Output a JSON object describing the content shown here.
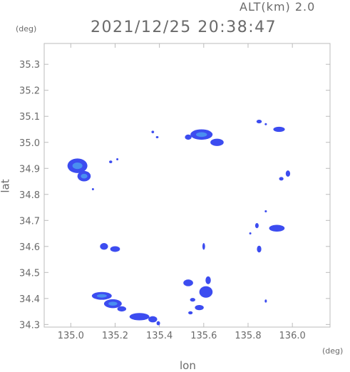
{
  "header": {
    "altitude_label": "ALT(km)  2.0",
    "timestamp": "2021/12/25 20:38:47"
  },
  "axes": {
    "x_unit": "(deg)",
    "y_unit": "(deg)",
    "xlabel": "lon",
    "ylabel": "lat"
  },
  "chart_data": {
    "type": "scatter",
    "title": "2021/12/25 20:38:47",
    "subtitle": "ALT(km)  2.0",
    "xlabel": "lon",
    "ylabel": "lat",
    "xlim": [
      134.88,
      136.17
    ],
    "ylim": [
      34.29,
      35.38
    ],
    "x_ticks": [
      135.0,
      135.2,
      135.4,
      135.6,
      135.8,
      136.0
    ],
    "x_tick_labels": [
      "135.0",
      "135.2",
      "135.4",
      "135.6",
      "135.8",
      "136.0"
    ],
    "y_ticks": [
      34.3,
      34.4,
      34.5,
      34.6,
      34.7,
      34.8,
      34.9,
      35.0,
      35.1,
      35.2,
      35.3
    ],
    "y_tick_labels": [
      "34.3",
      "34.4",
      "34.5",
      "34.6",
      "34.7",
      "34.8",
      "34.9",
      "35.0",
      "35.1",
      "35.2",
      "35.3"
    ],
    "grid": false,
    "colors": {
      "primary": "#3c4cf0",
      "core": "#4a8ff0",
      "axis": "#bbbbbb",
      "text": "#6a6a6a"
    },
    "echo_regions": [
      {
        "lon": 135.03,
        "lat": 34.91,
        "r_lon": 0.045,
        "r_lat": 0.028,
        "core": true
      },
      {
        "lon": 135.06,
        "lat": 34.87,
        "r_lon": 0.03,
        "r_lat": 0.02,
        "core": true
      },
      {
        "lon": 135.1,
        "lat": 34.82,
        "r_lon": 0.004,
        "r_lat": 0.004,
        "core": false
      },
      {
        "lon": 135.18,
        "lat": 34.925,
        "r_lon": 0.007,
        "r_lat": 0.005,
        "core": false
      },
      {
        "lon": 135.21,
        "lat": 34.935,
        "r_lon": 0.004,
        "r_lat": 0.004,
        "core": false
      },
      {
        "lon": 135.37,
        "lat": 35.04,
        "r_lon": 0.006,
        "r_lat": 0.005,
        "core": false
      },
      {
        "lon": 135.39,
        "lat": 35.02,
        "r_lon": 0.006,
        "r_lat": 0.004,
        "core": false
      },
      {
        "lon": 135.59,
        "lat": 35.03,
        "r_lon": 0.05,
        "r_lat": 0.02,
        "core": true
      },
      {
        "lon": 135.66,
        "lat": 35.0,
        "r_lon": 0.03,
        "r_lat": 0.014,
        "core": false
      },
      {
        "lon": 135.53,
        "lat": 35.02,
        "r_lon": 0.015,
        "r_lat": 0.01,
        "core": false
      },
      {
        "lon": 135.85,
        "lat": 35.08,
        "r_lon": 0.012,
        "r_lat": 0.007,
        "core": false
      },
      {
        "lon": 135.94,
        "lat": 35.05,
        "r_lon": 0.026,
        "r_lat": 0.01,
        "core": false
      },
      {
        "lon": 135.88,
        "lat": 35.07,
        "r_lon": 0.005,
        "r_lat": 0.004,
        "core": false
      },
      {
        "lon": 135.95,
        "lat": 34.86,
        "r_lon": 0.01,
        "r_lat": 0.007,
        "core": false
      },
      {
        "lon": 135.98,
        "lat": 34.88,
        "r_lon": 0.01,
        "r_lat": 0.012,
        "core": false
      },
      {
        "lon": 135.88,
        "lat": 34.735,
        "r_lon": 0.005,
        "r_lat": 0.004,
        "core": false
      },
      {
        "lon": 135.93,
        "lat": 34.67,
        "r_lon": 0.035,
        "r_lat": 0.013,
        "core": false
      },
      {
        "lon": 135.84,
        "lat": 34.68,
        "r_lon": 0.008,
        "r_lat": 0.01,
        "core": false
      },
      {
        "lon": 135.85,
        "lat": 34.59,
        "r_lon": 0.01,
        "r_lat": 0.013,
        "core": false
      },
      {
        "lon": 135.81,
        "lat": 34.65,
        "r_lon": 0.004,
        "r_lat": 0.004,
        "core": false
      },
      {
        "lon": 135.88,
        "lat": 34.39,
        "r_lon": 0.004,
        "r_lat": 0.006,
        "core": false
      },
      {
        "lon": 135.15,
        "lat": 34.6,
        "r_lon": 0.018,
        "r_lat": 0.013,
        "core": false
      },
      {
        "lon": 135.2,
        "lat": 34.59,
        "r_lon": 0.022,
        "r_lat": 0.011,
        "core": false
      },
      {
        "lon": 135.6,
        "lat": 34.6,
        "r_lon": 0.006,
        "r_lat": 0.013,
        "core": false
      },
      {
        "lon": 135.62,
        "lat": 34.47,
        "r_lon": 0.012,
        "r_lat": 0.015,
        "core": false
      },
      {
        "lon": 135.53,
        "lat": 34.46,
        "r_lon": 0.022,
        "r_lat": 0.013,
        "core": false
      },
      {
        "lon": 135.61,
        "lat": 34.425,
        "r_lon": 0.03,
        "r_lat": 0.022,
        "core": false
      },
      {
        "lon": 135.55,
        "lat": 34.395,
        "r_lon": 0.012,
        "r_lat": 0.007,
        "core": false
      },
      {
        "lon": 135.58,
        "lat": 34.365,
        "r_lon": 0.02,
        "r_lat": 0.01,
        "core": false
      },
      {
        "lon": 135.54,
        "lat": 34.345,
        "r_lon": 0.01,
        "r_lat": 0.006,
        "core": false
      },
      {
        "lon": 135.14,
        "lat": 34.41,
        "r_lon": 0.045,
        "r_lat": 0.015,
        "core": true
      },
      {
        "lon": 135.19,
        "lat": 34.38,
        "r_lon": 0.04,
        "r_lat": 0.017,
        "core": true
      },
      {
        "lon": 135.23,
        "lat": 34.36,
        "r_lon": 0.02,
        "r_lat": 0.01,
        "core": false
      },
      {
        "lon": 135.31,
        "lat": 34.33,
        "r_lon": 0.045,
        "r_lat": 0.014,
        "core": false
      },
      {
        "lon": 135.37,
        "lat": 34.32,
        "r_lon": 0.02,
        "r_lat": 0.012,
        "core": false
      },
      {
        "lon": 135.395,
        "lat": 34.305,
        "r_lon": 0.008,
        "r_lat": 0.008,
        "core": false
      }
    ]
  }
}
